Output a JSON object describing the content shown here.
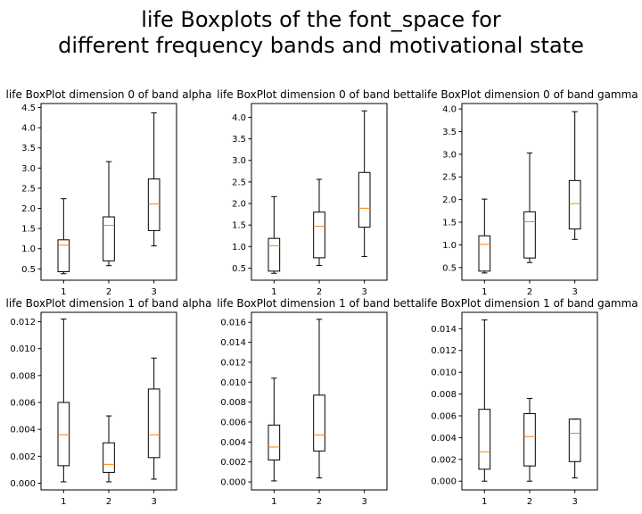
{
  "figure": {
    "title_line1": "life Boxplots of the font_space for",
    "title_line2": "different frequency bands and motivational state"
  },
  "chart_data": [
    {
      "type": "boxplot",
      "title": "life BoxPlot dimension 0 of band alpha",
      "categories": [
        "1",
        "2",
        "3"
      ],
      "ylim": [
        0.22,
        4.6
      ],
      "yticks": [
        0.5,
        1.0,
        1.5,
        2.0,
        2.5,
        3.0,
        3.5,
        4.0,
        4.5
      ],
      "ytick_labels": [
        "0.5",
        "1.0",
        "1.5",
        "2.0",
        "2.5",
        "3.0",
        "3.5",
        "4.0",
        "4.5"
      ],
      "boxes": [
        {
          "whislo": 0.38,
          "q1": 0.43,
          "med": 1.09,
          "q3": 1.22,
          "whishi": 2.24
        },
        {
          "whislo": 0.58,
          "q1": 0.7,
          "med": 1.58,
          "q3": 1.79,
          "whishi": 3.16
        },
        {
          "whislo": 1.07,
          "q1": 1.45,
          "med": 2.11,
          "q3": 2.73,
          "whishi": 4.37
        }
      ]
    },
    {
      "type": "boxplot",
      "title": "life BoxPlot dimension 0 of band betta",
      "categories": [
        "1",
        "2",
        "3"
      ],
      "ylim": [
        0.22,
        4.32
      ],
      "yticks": [
        0.5,
        1.0,
        1.5,
        2.0,
        2.5,
        3.0,
        3.5,
        4.0
      ],
      "ytick_labels": [
        "0.5",
        "1.0",
        "1.5",
        "2.0",
        "2.5",
        "3.0",
        "3.5",
        "4.0"
      ],
      "boxes": [
        {
          "whislo": 0.38,
          "q1": 0.43,
          "med": 1.02,
          "q3": 1.19,
          "whishi": 2.16
        },
        {
          "whislo": 0.56,
          "q1": 0.74,
          "med": 1.47,
          "q3": 1.8,
          "whishi": 2.56
        },
        {
          "whislo": 0.77,
          "q1": 1.45,
          "med": 1.89,
          "q3": 2.72,
          "whishi": 4.15
        }
      ]
    },
    {
      "type": "boxplot",
      "title": "life BoxPlot dimension 0 of band gamma",
      "categories": [
        "1",
        "2",
        "3"
      ],
      "ylim": [
        0.22,
        4.12
      ],
      "yticks": [
        0.5,
        1.0,
        1.5,
        2.0,
        2.5,
        3.0,
        3.5,
        4.0
      ],
      "ytick_labels": [
        "0.5",
        "1.0",
        "1.5",
        "2.0",
        "2.5",
        "3.0",
        "3.5",
        "4.0"
      ],
      "boxes": [
        {
          "whislo": 0.38,
          "q1": 0.42,
          "med": 1.01,
          "q3": 1.2,
          "whishi": 2.01
        },
        {
          "whislo": 0.61,
          "q1": 0.71,
          "med": 1.51,
          "q3": 1.73,
          "whishi": 3.03
        },
        {
          "whislo": 1.12,
          "q1": 1.35,
          "med": 1.91,
          "q3": 2.42,
          "whishi": 3.94
        }
      ]
    },
    {
      "type": "boxplot",
      "title": "life BoxPlot dimension 1 of band alpha",
      "categories": [
        "1",
        "2",
        "3"
      ],
      "ylim": [
        -0.0005,
        0.0127
      ],
      "yticks": [
        0.0,
        0.002,
        0.004,
        0.006,
        0.008,
        0.01,
        0.012
      ],
      "ytick_labels": [
        "0.000",
        "0.002",
        "0.004",
        "0.006",
        "0.008",
        "0.010",
        "0.012"
      ],
      "boxes": [
        {
          "whislo": 0.0001,
          "q1": 0.0013,
          "med": 0.0036,
          "q3": 0.006,
          "whishi": 0.0122
        },
        {
          "whislo": 0.0001,
          "q1": 0.0008,
          "med": 0.0014,
          "q3": 0.003,
          "whishi": 0.005
        },
        {
          "whislo": 0.0003,
          "q1": 0.0019,
          "med": 0.0036,
          "q3": 0.007,
          "whishi": 0.0093
        }
      ]
    },
    {
      "type": "boxplot",
      "title": "life BoxPlot dimension 1 of band betta",
      "categories": [
        "1",
        "2",
        "3"
      ],
      "ylim": [
        -0.0008,
        0.017
      ],
      "yticks": [
        0.0,
        0.002,
        0.004,
        0.006,
        0.008,
        0.01,
        0.012,
        0.014,
        0.016
      ],
      "ytick_labels": [
        "0.000",
        "0.002",
        "0.004",
        "0.006",
        "0.008",
        "0.010",
        "0.012",
        "0.014",
        "0.016"
      ],
      "boxes": [
        {
          "whislo": 0.0001,
          "q1": 0.0022,
          "med": 0.0035,
          "q3": 0.0057,
          "whishi": 0.0104
        },
        {
          "whislo": 0.0004,
          "q1": 0.0031,
          "med": 0.0047,
          "q3": 0.0087,
          "whishi": 0.0163
        },
        null
      ]
    },
    {
      "type": "boxplot",
      "title": "life BoxPlot dimension 1 of band gamma",
      "categories": [
        "1",
        "2",
        "3"
      ],
      "ylim": [
        -0.0008,
        0.0155
      ],
      "yticks": [
        0.0,
        0.002,
        0.004,
        0.006,
        0.008,
        0.01,
        0.012,
        0.014
      ],
      "ytick_labels": [
        "0.000",
        "0.002",
        "0.004",
        "0.006",
        "0.008",
        "0.010",
        "0.012",
        "0.014"
      ],
      "boxes": [
        {
          "whislo": 0.0,
          "q1": 0.0011,
          "med": 0.0027,
          "q3": 0.0066,
          "whishi": 0.0148
        },
        {
          "whislo": 0.0,
          "q1": 0.0014,
          "med": 0.0041,
          "q3": 0.0062,
          "whishi": 0.0076
        },
        {
          "whislo": 0.0003,
          "q1": 0.0018,
          "med": 0.0044,
          "q3": 0.0057,
          "whishi": 0.0057
        }
      ]
    }
  ],
  "style": {
    "box_color": "#000000",
    "median_color": "#ff7f0e",
    "background": "#ffffff"
  }
}
